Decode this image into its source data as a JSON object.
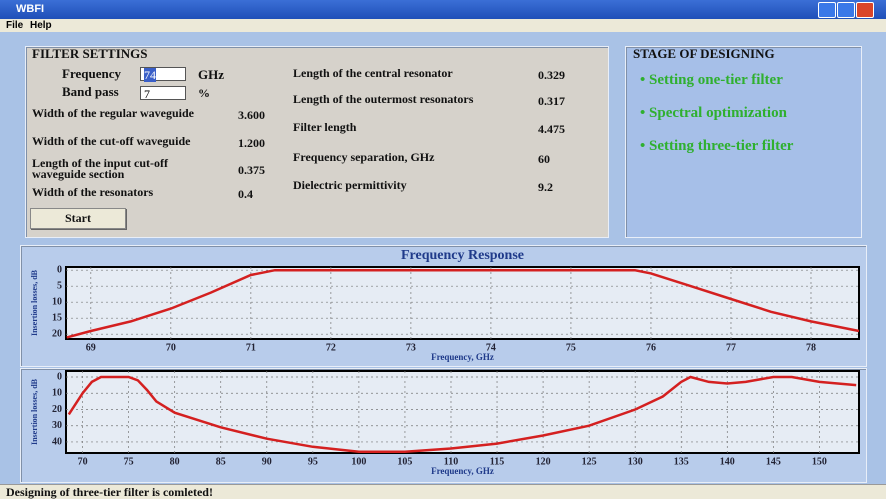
{
  "window": {
    "title": "WBFI",
    "menu": [
      "File",
      "Help"
    ]
  },
  "filter_settings": {
    "title": "FILTER SETTINGS",
    "frequency": {
      "label": "Frequency",
      "value": "74",
      "unit": "GHz"
    },
    "band_pass": {
      "label": "Band pass",
      "value": "7",
      "unit": "%"
    },
    "params_left": [
      {
        "label": "Width of the regular waveguide",
        "value": "3.600"
      },
      {
        "label": "Width of the cut-off waveguide",
        "value": "1.200"
      },
      {
        "label": "Length of the input cut-off waveguide section",
        "value": "0.375"
      },
      {
        "label": "Width of the resonators",
        "value": "0.4"
      }
    ],
    "params_right": [
      {
        "label": "Length of the central resonator",
        "value": "0.329"
      },
      {
        "label": "Length of the outermost resonators",
        "value": "0.317"
      },
      {
        "label": "Filter length",
        "value": "4.475"
      },
      {
        "label": "Frequency separation, GHz",
        "value": "60"
      },
      {
        "label": "Dielectric permittivity",
        "value": "9.2"
      }
    ],
    "start": "Start"
  },
  "stage": {
    "title": "STAGE OF DESIGNING",
    "steps": [
      "Setting one-tier filter",
      "Spectral optimization",
      "Setting three-tier filter"
    ]
  },
  "charts": [
    {
      "type": "line",
      "title": "Frequency Response",
      "y_label": "Insertion losses, dB",
      "x_label": "Frequency, GHz",
      "color": "#d42020",
      "x": [
        68.7,
        69,
        69.5,
        70,
        70.5,
        71,
        71.3,
        72,
        73,
        74,
        75,
        75.8,
        76,
        76.5,
        77,
        77.5,
        78,
        78.6
      ],
      "values": [
        21,
        19,
        16,
        12,
        7,
        1.5,
        0,
        0,
        0,
        0,
        0,
        0,
        1,
        5,
        9,
        13,
        16,
        19
      ],
      "xlim": [
        68.69,
        78.6
      ],
      "ylim": [
        21.5,
        -1
      ],
      "xticks": [
        69,
        70,
        71,
        72,
        73,
        74,
        75,
        76,
        77,
        78
      ],
      "yticks": [
        0,
        5,
        10,
        15,
        20
      ]
    },
    {
      "type": "line",
      "y_label": "Insertion losses, dB",
      "x_label": "Frequency, GHz",
      "color": "#d42020",
      "x": [
        68.5,
        70,
        71,
        72,
        75,
        76,
        77,
        78,
        80,
        85,
        90,
        95,
        100,
        105,
        110,
        115,
        120,
        125,
        130,
        133,
        135,
        136,
        138,
        140,
        142,
        145,
        147,
        150,
        154
      ],
      "values": [
        23,
        10,
        3,
        0,
        0,
        2,
        8,
        15,
        22,
        31,
        38,
        43,
        46,
        46,
        44,
        41,
        36,
        30,
        20,
        12,
        3,
        0,
        3,
        4,
        3,
        0,
        0,
        3,
        5
      ],
      "xlim": [
        68.2,
        154.3
      ],
      "ylim": [
        46.8,
        -3.7
      ],
      "xticks": [
        70,
        75,
        80,
        85,
        90,
        95,
        100,
        105,
        110,
        115,
        120,
        125,
        130,
        135,
        140,
        145,
        150
      ],
      "yticks": [
        0,
        10,
        20,
        30,
        40
      ]
    }
  ],
  "status": "Designing of three-tier filter is comleted!"
}
